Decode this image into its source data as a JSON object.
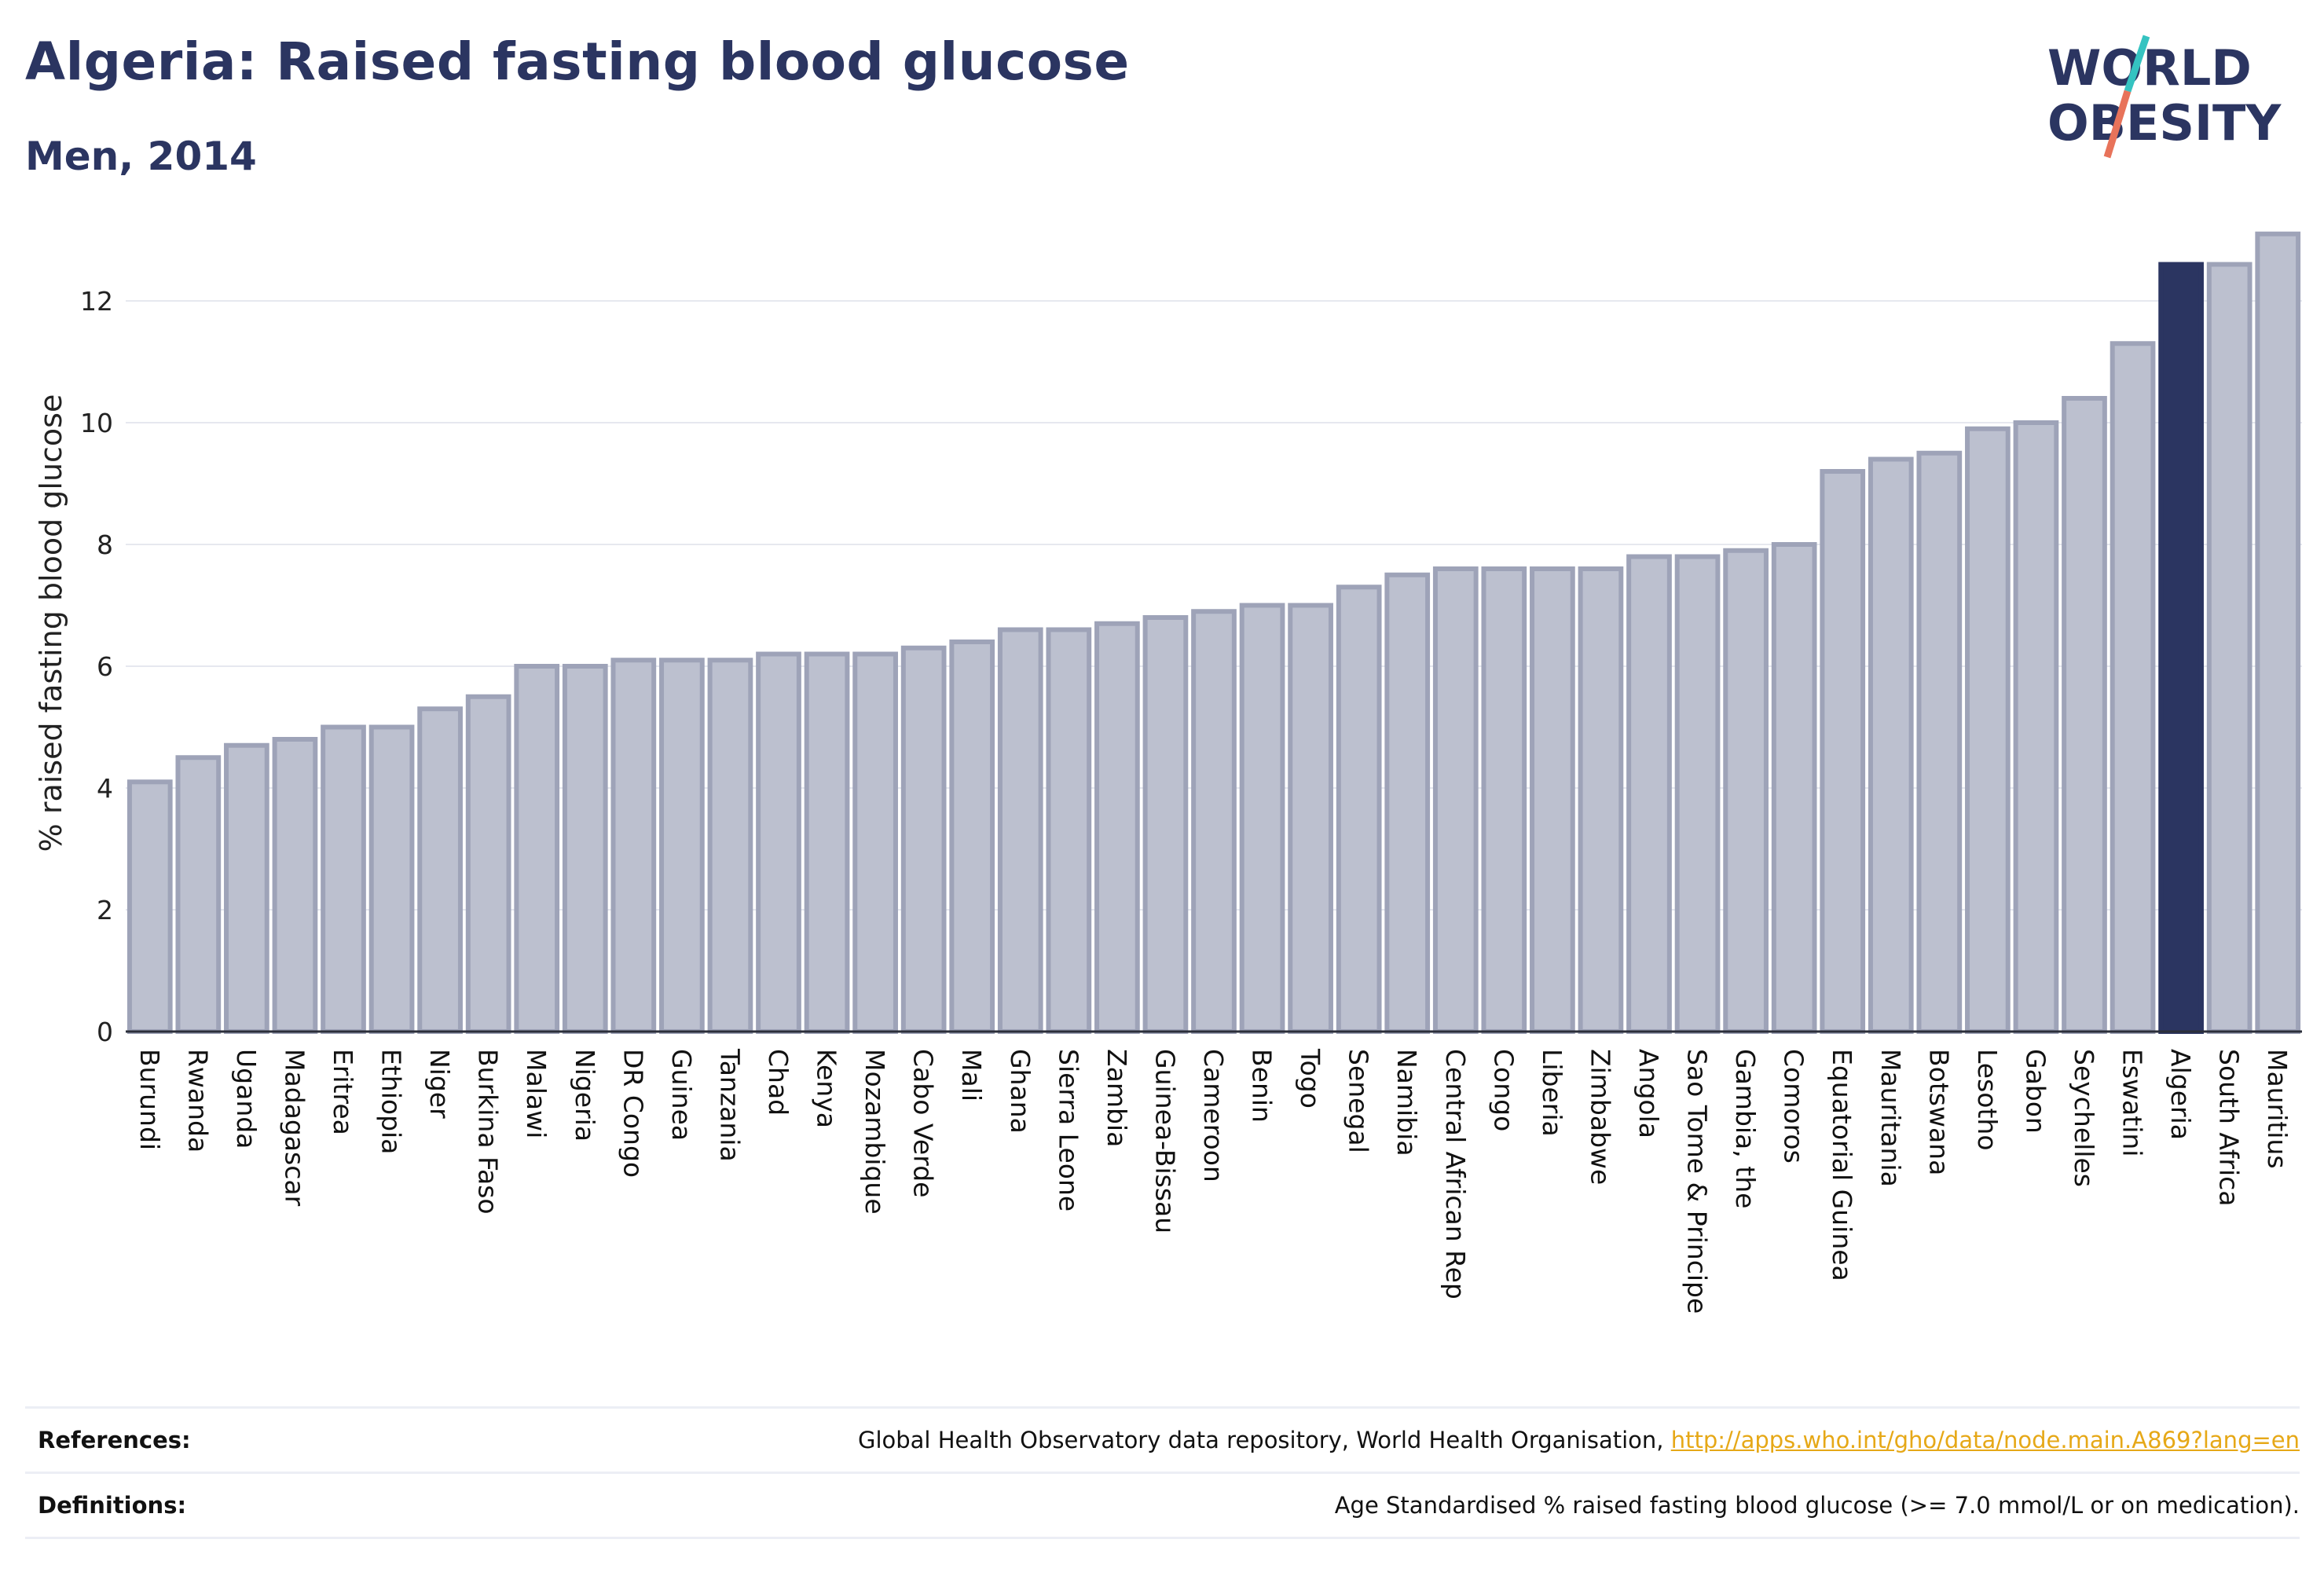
{
  "header": {
    "title": "Algeria: Raised fasting blood glucose",
    "subtitle": "Men, 2014"
  },
  "logo": {
    "line1": "WORLD",
    "line2": "OBESITY",
    "colors": {
      "text": "#2b3561",
      "slash_teal": "#35c3c1",
      "slash_red": "#e8735a"
    }
  },
  "chart_data": {
    "type": "bar",
    "ylabel": "% raised fasting blood glucose",
    "ylim": [
      0,
      13.2
    ],
    "yticks": [
      0,
      2,
      4,
      6,
      8,
      10,
      12
    ],
    "grid": true,
    "highlight": "Algeria",
    "colors": {
      "bar": "#bcc0cf",
      "bar_border": "#9ea3b8",
      "highlight": "#2b3561"
    },
    "categories": [
      "Burundi",
      "Rwanda",
      "Uganda",
      "Madagascar",
      "Eritrea",
      "Ethiopia",
      "Niger",
      "Burkina Faso",
      "Malawi",
      "Nigeria",
      "DR Congo",
      "Guinea",
      "Tanzania",
      "Chad",
      "Kenya",
      "Mozambique",
      "Cabo Verde",
      "Mali",
      "Ghana",
      "Sierra Leone",
      "Zambia",
      "Guinea-Bissau",
      "Cameroon",
      "Benin",
      "Togo",
      "Senegal",
      "Namibia",
      "Central African Rep",
      "Congo",
      "Liberia",
      "Zimbabwe",
      "Angola",
      "Sao Tome & Principe",
      "Gambia, the",
      "Comoros",
      "Equatorial Guinea",
      "Mauritania",
      "Botswana",
      "Lesotho",
      "Gabon",
      "Seychelles",
      "Eswatini",
      "Algeria",
      "South Africa",
      "Mauritius"
    ],
    "values": [
      4.1,
      4.5,
      4.7,
      4.8,
      5.0,
      5.0,
      5.3,
      5.5,
      6.0,
      6.0,
      6.1,
      6.1,
      6.1,
      6.2,
      6.2,
      6.2,
      6.3,
      6.4,
      6.6,
      6.6,
      6.7,
      6.8,
      6.9,
      7.0,
      7.0,
      7.3,
      7.5,
      7.6,
      7.6,
      7.6,
      7.6,
      7.8,
      7.8,
      7.9,
      8.0,
      9.2,
      9.4,
      9.5,
      9.9,
      10.0,
      10.4,
      11.3,
      12.6,
      12.6,
      13.1
    ]
  },
  "footer": {
    "references_label": "References:",
    "references_text": "Global Health Observatory data repository, World Health Organisation, ",
    "references_link": "http://apps.who.int/gho/data/node.main.A869?lang=en",
    "definitions_label": "Definitions:",
    "definitions_text": "Age Standardised % raised fasting blood glucose (>= 7.0 mmol/L or on medication)."
  }
}
